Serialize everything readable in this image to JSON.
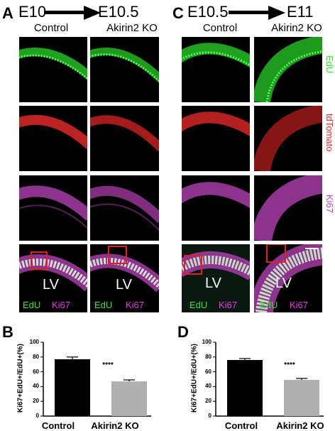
{
  "figure": {
    "panels": {
      "A": {
        "letter": "A",
        "stage_from": "E10",
        "stage_to": "E10.5",
        "col1": "Control",
        "col2": "Akirin2 KO"
      },
      "C": {
        "letter": "C",
        "stage_from": "E10.5",
        "stage_to": "E11",
        "col1": "Control",
        "col2": "Akirin2 KO"
      }
    },
    "channel_labels": [
      "EdU",
      "tdTomato",
      "Ki67"
    ],
    "merge": {
      "lv": "LV",
      "edu": "EdU",
      "ki67": "Ki67"
    },
    "colors": {
      "edu": "#32e632",
      "tdtomato": "#e03030",
      "ki67": "#c040c0"
    }
  },
  "chart_data": [
    {
      "letter": "B",
      "type": "bar",
      "categories": [
        "Control",
        "Akirin2 KO"
      ],
      "values": [
        77,
        47
      ],
      "errors": [
        3,
        2
      ],
      "ylabel": "Ki67+EdU+/EdU+(%)",
      "ylim": [
        0,
        100
      ],
      "yticks": [
        0,
        20,
        40,
        60,
        80,
        100
      ],
      "significance": "****",
      "bar_fills": [
        "black",
        "gray-hatched"
      ]
    },
    {
      "letter": "D",
      "type": "bar",
      "categories": [
        "Control",
        "Akirin2 KO"
      ],
      "values": [
        76,
        49
      ],
      "errors": [
        2,
        2
      ],
      "ylabel": "Ki67+EdU+/EdU+(%)",
      "ylim": [
        0,
        100
      ],
      "yticks": [
        0,
        20,
        40,
        60,
        80,
        100
      ],
      "significance": "****",
      "bar_fills": [
        "black",
        "gray-hatched"
      ]
    }
  ]
}
